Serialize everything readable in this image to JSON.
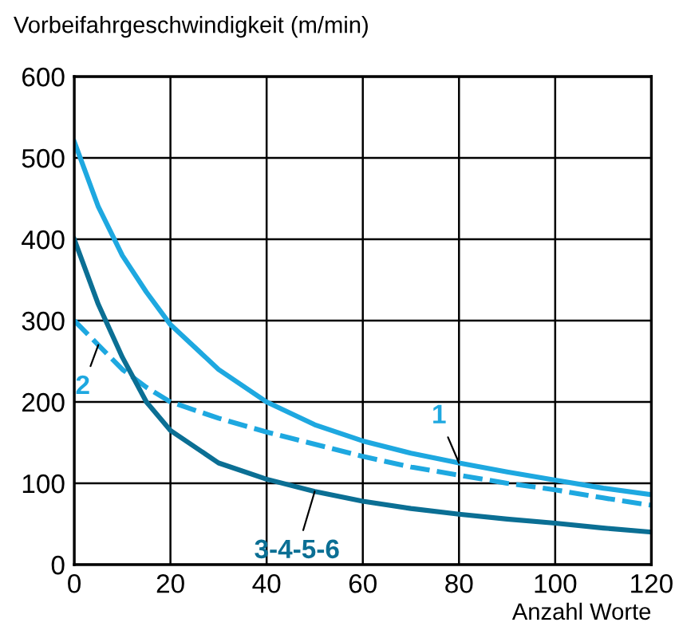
{
  "chart_data": {
    "type": "line",
    "ylabel": "Vorbeifahrgeschwindigkeit (m/min)",
    "xlabel": "Anzahl Worte",
    "xlim": [
      0,
      120
    ],
    "xticks": [
      0,
      20,
      40,
      60,
      80,
      100,
      120
    ],
    "ylim": [
      0,
      600
    ],
    "yticks": [
      0,
      100,
      200,
      300,
      400,
      500,
      600
    ],
    "grid": true,
    "legend": false,
    "marker": "none",
    "series": [
      {
        "name": "1",
        "color": "#1ea8e0",
        "line_style": "solid",
        "x": [
          0,
          5,
          10,
          15,
          20,
          30,
          40,
          50,
          60,
          70,
          80,
          90,
          100,
          110,
          120
        ],
        "values": [
          520,
          440,
          380,
          335,
          295,
          240,
          200,
          172,
          152,
          137,
          125,
          114,
          104,
          94,
          86
        ]
      },
      {
        "name": "2",
        "color": "#1ea8e0",
        "line_style": "dashed",
        "x": [
          0,
          5,
          10,
          15,
          20,
          30,
          40,
          50,
          60,
          70,
          80,
          90,
          100,
          110,
          120
        ],
        "values": [
          300,
          270,
          240,
          218,
          200,
          180,
          163,
          148,
          133,
          120,
          110,
          100,
          92,
          82,
          73
        ]
      },
      {
        "name": "3-4-5-6",
        "color": "#0b6f94",
        "line_style": "solid",
        "x": [
          0,
          5,
          10,
          15,
          20,
          30,
          40,
          50,
          60,
          70,
          80,
          90,
          100,
          110,
          120
        ],
        "values": [
          400,
          320,
          255,
          200,
          165,
          125,
          105,
          90,
          78,
          69,
          62,
          56,
          51,
          45,
          40
        ]
      }
    ]
  }
}
